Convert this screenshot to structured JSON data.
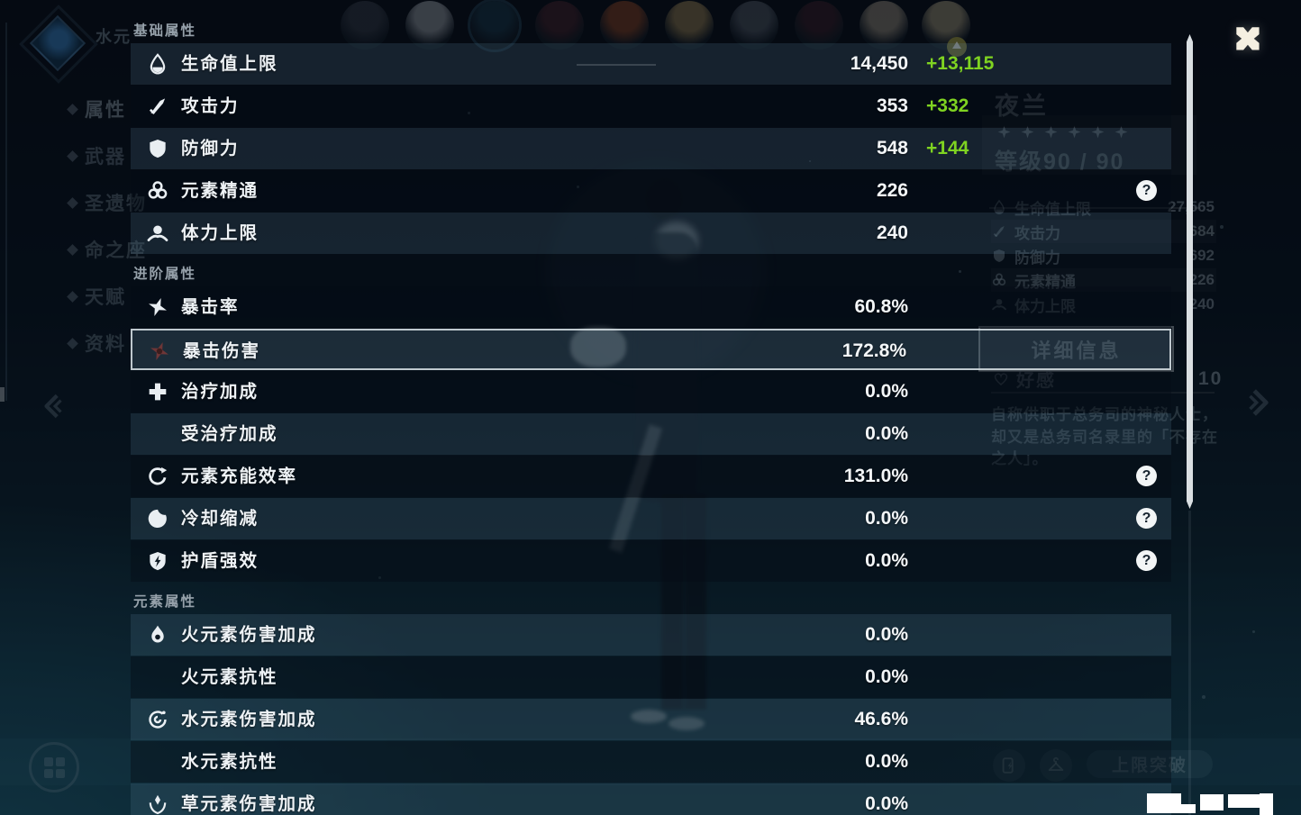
{
  "overlay": {
    "help_glyph": "?",
    "sections": [
      {
        "title": "基础属性",
        "rows": [
          {
            "label": "生命值上限",
            "value": "14,450",
            "bonus": "+13,115",
            "icon": "hp-icon"
          },
          {
            "label": "攻击力",
            "value": "353",
            "bonus": "+332",
            "icon": "atk-icon"
          },
          {
            "label": "防御力",
            "value": "548",
            "bonus": "+144",
            "icon": "def-icon"
          },
          {
            "label": "元素精通",
            "value": "226",
            "icon": "elemental-mastery-icon",
            "help": true
          },
          {
            "label": "体力上限",
            "value": "240",
            "icon": "stamina-icon"
          }
        ]
      },
      {
        "title": "进阶属性",
        "rows": [
          {
            "label": "暴击率",
            "value": "60.8%",
            "icon": "crit-rate-icon"
          },
          {
            "label": "暴击伤害",
            "value": "172.8%",
            "icon": "crit-dmg-icon",
            "selected": true
          },
          {
            "label": "治疗加成",
            "value": "0.0%",
            "icon": "healing-bonus-icon"
          },
          {
            "label": "受治疗加成",
            "value": "0.0%"
          },
          {
            "label": "元素充能效率",
            "value": "131.0%",
            "icon": "energy-recharge-icon",
            "help": true
          },
          {
            "label": "冷却缩减",
            "value": "0.0%",
            "icon": "cooldown-reduction-icon",
            "help": true
          },
          {
            "label": "护盾强效",
            "value": "0.0%",
            "icon": "shield-strength-icon",
            "help": true
          }
        ]
      },
      {
        "title": "元素属性",
        "rows": [
          {
            "label": "火元素伤害加成",
            "value": "0.0%",
            "icon": "pyro-icon"
          },
          {
            "label": "火元素抗性",
            "value": "0.0%"
          },
          {
            "label": "水元素伤害加成",
            "value": "46.6%",
            "icon": "hydro-icon"
          },
          {
            "label": "水元素抗性",
            "value": "0.0%"
          },
          {
            "label": "草元素伤害加成",
            "value": "0.0%",
            "icon": "dendro-icon"
          }
        ]
      }
    ]
  },
  "background": {
    "element_label": "水元",
    "nav": [
      {
        "label": "属性",
        "active": true
      },
      {
        "label": "武器"
      },
      {
        "label": "圣遗物"
      },
      {
        "label": "命之座"
      },
      {
        "label": "天赋"
      },
      {
        "label": "资料"
      }
    ],
    "avatar_colors": [
      "#454c5c",
      "#cdd5de",
      "#1f4a63",
      "#5c2b35",
      "#b5562c",
      "#c9a96a",
      "#6a7584",
      "#4b2632",
      "#c8baa3",
      "#d9caa1"
    ],
    "character": {
      "name": "夜兰",
      "stars": 6,
      "level_label": "等级90 / 90",
      "stats": [
        {
          "label": "生命值上限",
          "value": "27,565",
          "icon": "hp-icon"
        },
        {
          "label": "攻击力",
          "value": "684",
          "icon": "atk-icon"
        },
        {
          "label": "防御力",
          "value": "692",
          "icon": "def-icon"
        },
        {
          "label": "元素精通",
          "value": "226",
          "icon": "elemental-mastery-icon"
        },
        {
          "label": "体力上限",
          "value": "240",
          "icon": "stamina-icon"
        }
      ],
      "details_button": "详细信息",
      "friendship_label": "好感",
      "friendship_value": "10",
      "description": "自称供职于总务司的神秘人士，却又是总务司名录里的「不存在之人」。"
    },
    "ascend_button": "上限突破"
  },
  "colors": {
    "bonus_green": "#7fd321",
    "scrollbar": "#dadfe2"
  }
}
